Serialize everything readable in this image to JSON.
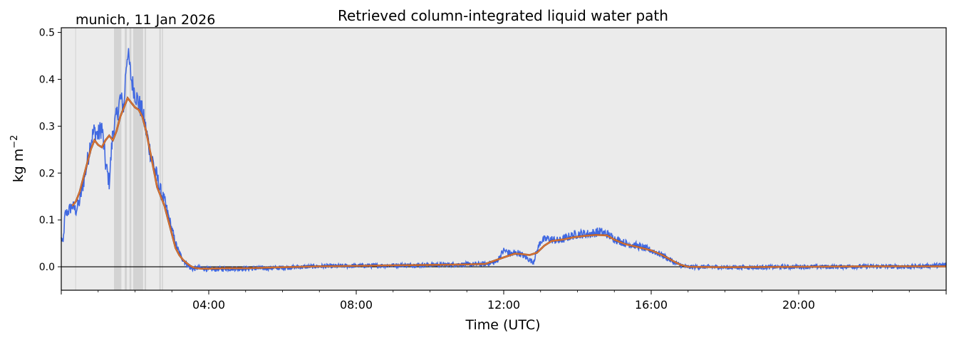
{
  "chart_data": {
    "type": "line",
    "title": "Retrieved column-integrated liquid water path",
    "location_label": "munich, 11 Jan 2026",
    "xlabel": "Time (UTC)",
    "ylabel_main": "kg m",
    "ylabel_exp": "−2",
    "xlim_hours": [
      0,
      24
    ],
    "ylim": [
      -0.05,
      0.51
    ],
    "x_ticks": [
      {
        "hour": 4,
        "label": "04:00"
      },
      {
        "hour": 8,
        "label": "08:00"
      },
      {
        "hour": 12,
        "label": "12:00"
      },
      {
        "hour": 16,
        "label": "16:00"
      },
      {
        "hour": 20,
        "label": "20:00"
      }
    ],
    "y_ticks": [
      {
        "value": 0.0,
        "label": "0.0"
      },
      {
        "value": 0.1,
        "label": "0.1"
      },
      {
        "value": 0.2,
        "label": "0.2"
      },
      {
        "value": 0.3,
        "label": "0.3"
      },
      {
        "value": 0.4,
        "label": "0.4"
      },
      {
        "value": 0.5,
        "label": "0.5"
      }
    ],
    "zero_line": 0.0,
    "background_color": "#ebebeb",
    "flag_band_color": "#d3d3d3",
    "flagged_intervals_hours": [
      [
        0.38,
        0.4
      ],
      [
        1.43,
        1.63
      ],
      [
        1.72,
        1.78
      ],
      [
        1.85,
        1.9
      ],
      [
        1.95,
        2.22
      ],
      [
        2.26,
        2.3
      ],
      [
        2.66,
        2.7
      ],
      [
        2.73,
        2.76
      ]
    ],
    "series": [
      {
        "color": "#4169e1",
        "noise": 0.012,
        "x_hours": [
          0.0,
          0.05,
          0.1,
          0.2,
          0.3,
          0.4,
          0.5,
          0.6,
          0.7,
          0.8,
          0.9,
          1.0,
          1.1,
          1.2,
          1.3,
          1.4,
          1.5,
          1.6,
          1.7,
          1.75,
          1.8,
          1.9,
          2.0,
          2.1,
          2.2,
          2.3,
          2.4,
          2.5,
          2.6,
          2.7,
          2.8,
          2.9,
          3.0,
          3.1,
          3.2,
          3.3,
          3.4,
          3.5,
          3.6,
          3.7,
          3.8,
          3.9,
          4.0,
          4.5,
          5.0,
          6.0,
          7.0,
          8.0,
          9.0,
          10.0,
          11.0,
          11.5,
          11.8,
          12.0,
          12.2,
          12.4,
          12.6,
          12.8,
          13.0,
          13.2,
          13.5,
          13.8,
          14.0,
          14.3,
          14.6,
          14.8,
          15.0,
          15.3,
          15.6,
          16.0,
          16.3,
          16.6,
          16.8,
          17.0,
          17.5,
          18.0,
          19.0,
          20.0,
          21.0,
          22.0,
          23.0,
          23.5,
          24.0
        ],
        "y": [
          0.06,
          0.05,
          0.11,
          0.12,
          0.13,
          0.12,
          0.14,
          0.18,
          0.22,
          0.27,
          0.29,
          0.28,
          0.3,
          0.22,
          0.18,
          0.29,
          0.32,
          0.36,
          0.34,
          0.42,
          0.46,
          0.4,
          0.37,
          0.35,
          0.33,
          0.29,
          0.25,
          0.22,
          0.19,
          0.16,
          0.14,
          0.11,
          0.08,
          0.05,
          0.03,
          0.015,
          0.005,
          -0.003,
          -0.005,
          -0.002,
          -0.003,
          -0.004,
          -0.006,
          -0.004,
          -0.004,
          -0.002,
          0.001,
          0.002,
          0.003,
          0.004,
          0.005,
          0.006,
          0.01,
          0.035,
          0.028,
          0.03,
          0.02,
          0.01,
          0.055,
          0.06,
          0.055,
          0.065,
          0.07,
          0.07,
          0.075,
          0.07,
          0.06,
          0.05,
          0.045,
          0.035,
          0.025,
          0.01,
          0.003,
          -0.001,
          0.0,
          -0.001,
          -0.001,
          0.0,
          0.0,
          0.001,
          0.0,
          0.002,
          0.004
        ]
      },
      {
        "color": "#e07b39",
        "noise": 0,
        "x_hours": [
          0.3,
          0.4,
          0.5,
          0.6,
          0.7,
          0.8,
          0.9,
          1.0,
          1.1,
          1.2,
          1.3,
          1.4,
          1.5,
          1.6,
          1.7,
          1.8,
          1.9,
          2.0,
          2.1,
          2.2,
          2.3,
          2.4,
          2.5,
          2.6,
          2.7,
          2.8,
          2.9,
          3.0,
          3.1,
          3.2,
          3.3,
          3.4,
          3.5,
          3.6,
          3.8,
          4.0,
          4.5,
          5.0,
          6.0,
          7.0,
          8.0,
          9.0,
          10.0,
          11.0,
          11.5,
          12.0,
          12.3,
          12.5,
          12.7,
          12.9,
          13.1,
          13.3,
          13.6,
          13.9,
          14.2,
          14.5,
          14.8,
          15.0,
          15.3,
          15.6,
          16.0,
          16.3,
          16.6,
          16.8,
          17.0,
          18.0,
          20.0,
          22.0,
          24.0
        ],
        "y": [
          0.13,
          0.14,
          0.16,
          0.19,
          0.22,
          0.25,
          0.27,
          0.26,
          0.255,
          0.27,
          0.28,
          0.27,
          0.29,
          0.32,
          0.34,
          0.36,
          0.35,
          0.34,
          0.335,
          0.32,
          0.29,
          0.25,
          0.21,
          0.17,
          0.15,
          0.13,
          0.1,
          0.07,
          0.04,
          0.025,
          0.015,
          0.008,
          0.002,
          -0.002,
          -0.004,
          -0.004,
          -0.003,
          -0.003,
          -0.001,
          0.001,
          0.002,
          0.003,
          0.004,
          0.005,
          0.006,
          0.02,
          0.028,
          0.027,
          0.025,
          0.03,
          0.045,
          0.055,
          0.058,
          0.063,
          0.066,
          0.068,
          0.067,
          0.058,
          0.048,
          0.043,
          0.035,
          0.025,
          0.012,
          0.004,
          0.0,
          -0.001,
          0.0,
          0.001,
          0.001
        ]
      }
    ]
  }
}
